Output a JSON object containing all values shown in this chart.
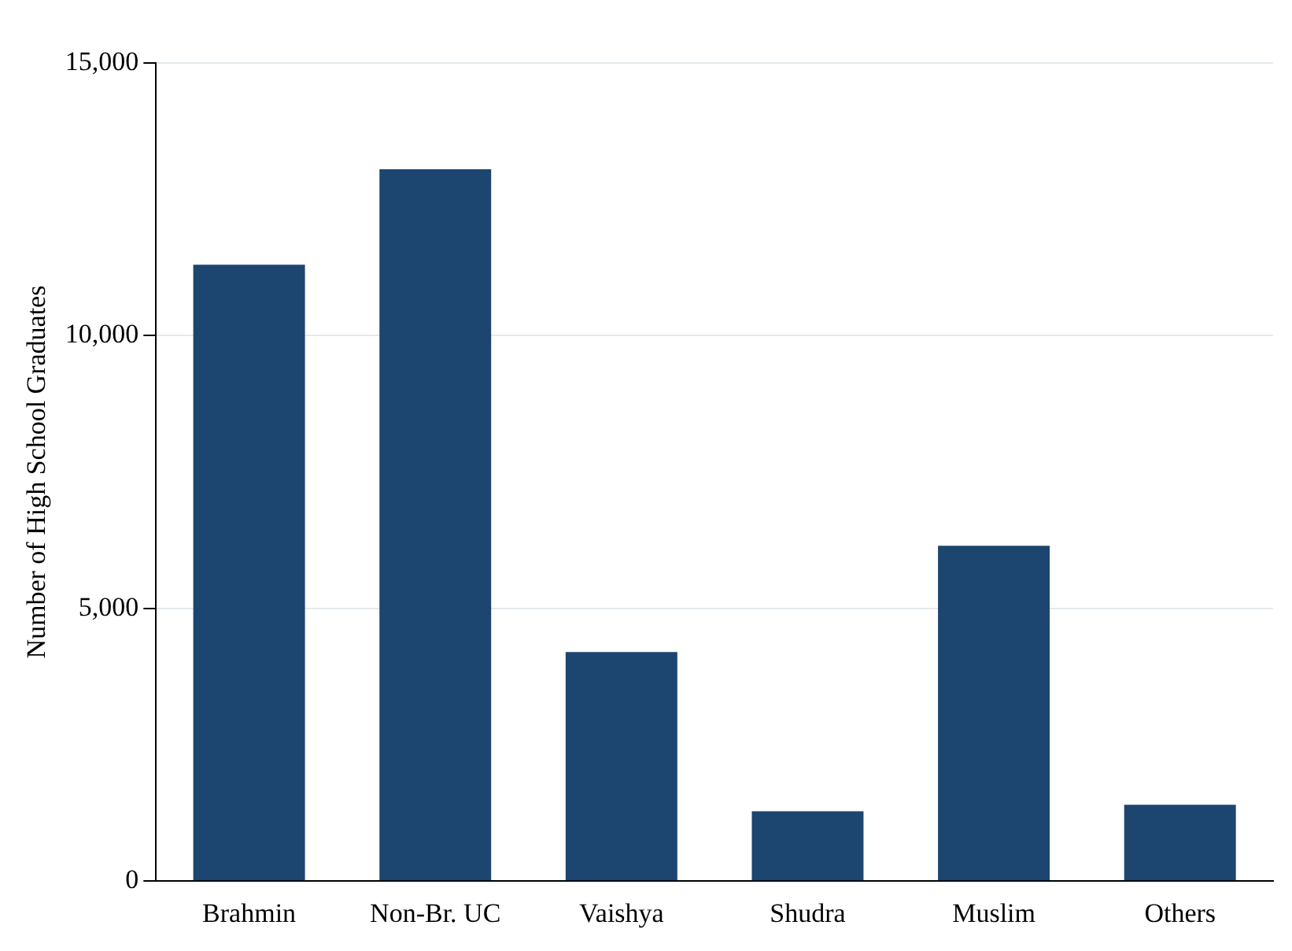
{
  "chart_data": {
    "type": "bar",
    "ylabel": "Number of High School Graduates",
    "categories": [
      "Brahmin",
      "Non-Br. UC",
      "Vaishya",
      "Shudra",
      "Muslim",
      "Others"
    ],
    "values": [
      11300,
      13050,
      4200,
      1280,
      6150,
      1400
    ],
    "color": "#1c466f",
    "ylim": [
      0,
      15000
    ],
    "yticks": [
      {
        "value": 0,
        "label": "0"
      },
      {
        "value": 5000,
        "label": "5,000"
      },
      {
        "value": 10000,
        "label": "10,000"
      },
      {
        "value": 15000,
        "label": "15,000"
      }
    ],
    "grid": "y"
  }
}
